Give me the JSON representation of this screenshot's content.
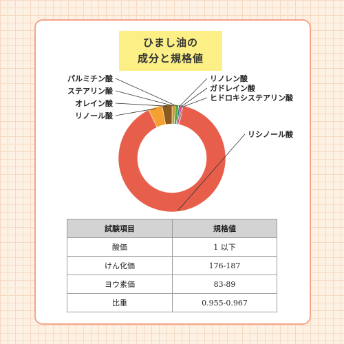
{
  "title_lines": [
    "ひまし油の",
    "成分と規格値"
  ],
  "chart_data": {
    "type": "pie",
    "donut": true,
    "slices": [
      {
        "label": "リシノール酸",
        "value": 89.5,
        "color": "#e75f4b"
      },
      {
        "label": "リノール酸",
        "value": 4.2,
        "color": "#f4a132"
      },
      {
        "label": "オレイン酸",
        "value": 3.0,
        "color": "#8b5a1f"
      },
      {
        "label": "ステアリン酸",
        "value": 1.0,
        "color": "#c69a2e"
      },
      {
        "label": "パルミチン酸",
        "value": 1.0,
        "color": "#57a83b"
      },
      {
        "label": "リノレン酸",
        "value": 0.5,
        "color": "#1f6c8c"
      },
      {
        "label": "ガドレイン酸",
        "value": 0.5,
        "color": "#d9318a"
      },
      {
        "label": "ヒドロキシステアリン酸",
        "value": 0.3,
        "color": "#6b2b10"
      }
    ]
  },
  "table": {
    "headers": [
      "試験項目",
      "規格値"
    ],
    "rows": [
      [
        "酸価",
        "1 以下"
      ],
      [
        "けん化価",
        "176-187"
      ],
      [
        "ヨウ素価",
        "83-89"
      ],
      [
        "比重",
        "0.955-0.967"
      ]
    ]
  }
}
